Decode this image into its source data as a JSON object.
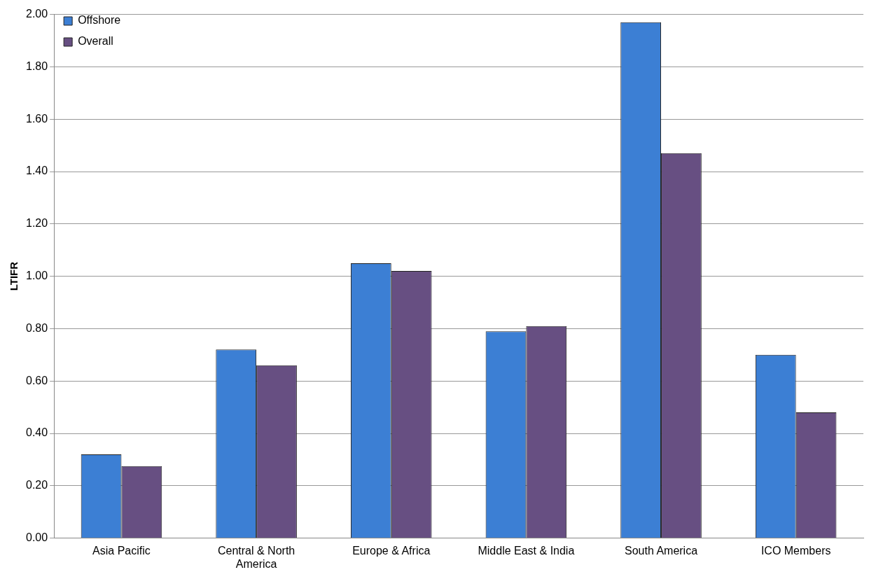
{
  "chart_data": {
    "type": "bar",
    "ylabel": "LTIFR",
    "categories": [
      "Asia Pacific",
      "Central & North America",
      "Europe & Africa",
      "Middle East & India",
      "South America",
      "ICO Members"
    ],
    "series": [
      {
        "name": "Offshore",
        "color": "#3c7fd4",
        "values": [
          0.32,
          0.72,
          1.05,
          0.79,
          1.97,
          0.7
        ]
      },
      {
        "name": "Overall",
        "color": "#674f82",
        "values": [
          0.275,
          0.66,
          1.02,
          0.81,
          1.47,
          0.48
        ]
      }
    ],
    "ylim": [
      0,
      2
    ],
    "yticks": [
      {
        "value": 0,
        "label": "0.00"
      },
      {
        "value": 0.2,
        "label": "0.20"
      },
      {
        "value": 0.4,
        "label": "0.40"
      },
      {
        "value": 0.6,
        "label": "0.60"
      },
      {
        "value": 0.8,
        "label": "0.80"
      },
      {
        "value": 1,
        "label": "1.00"
      },
      {
        "value": 1.2,
        "label": "1.20"
      },
      {
        "value": 1.4,
        "label": "1.40"
      },
      {
        "value": 1.6,
        "label": "1.60"
      },
      {
        "value": 1.8,
        "label": "1.80"
      },
      {
        "value": 2,
        "label": "2.00"
      }
    ],
    "grid": "y",
    "legend": "top left"
  }
}
